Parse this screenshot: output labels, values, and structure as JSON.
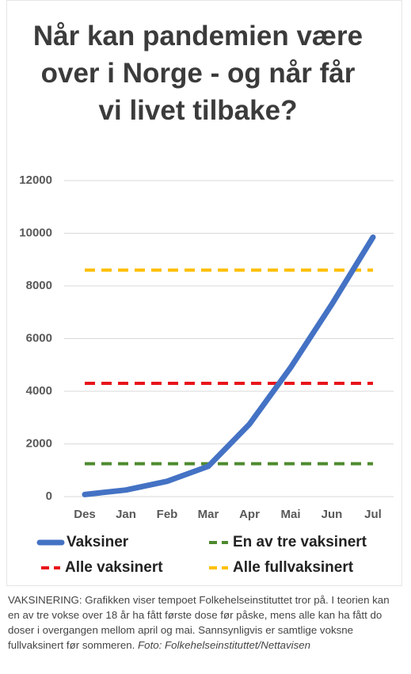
{
  "chart_data": {
    "type": "line",
    "title": "Når kan pandemien være over i Norge - og når får vi livet tilbake?",
    "categories": [
      "Des",
      "Jan",
      "Feb",
      "Mar",
      "Apr",
      "Mai",
      "Jun",
      "Jul"
    ],
    "ylim": [
      0,
      12000
    ],
    "yticks": [
      0,
      2000,
      4000,
      6000,
      8000,
      10000,
      12000
    ],
    "grid": true,
    "series": [
      {
        "name": "Vaksiner",
        "color": "#4472c4",
        "dashed": false,
        "values": [
          80,
          250,
          580,
          1150,
          2750,
          4900,
          7300,
          9850
        ]
      },
      {
        "name": "En av tre vaksinert",
        "color": "#4e8a2e",
        "dashed": true,
        "values": [
          1250,
          1250,
          1250,
          1250,
          1250,
          1250,
          1250,
          1250
        ]
      },
      {
        "name": "Alle vaksinert",
        "color": "#e8141a",
        "dashed": true,
        "values": [
          4300,
          4300,
          4300,
          4300,
          4300,
          4300,
          4300,
          4300
        ]
      },
      {
        "name": "Alle fullvaksinert",
        "color": "#ffc000",
        "dashed": true,
        "values": [
          8600,
          8600,
          8600,
          8600,
          8600,
          8600,
          8600,
          8600
        ]
      }
    ]
  },
  "caption": {
    "text": "VAKSINERING: Grafikken viser tempoet Folkehelseinstituttet tror på. I teorien kan en av tre vokse over 18 år ha fått første dose før påske, mens alle kan ha fått do doser i overgangen mellom april og mai. Sannsynligvis er samtlige voksne fullvaksinert før sommeren.",
    "credit": "Foto: Folkehelseinstituttet/Nettavisen"
  }
}
